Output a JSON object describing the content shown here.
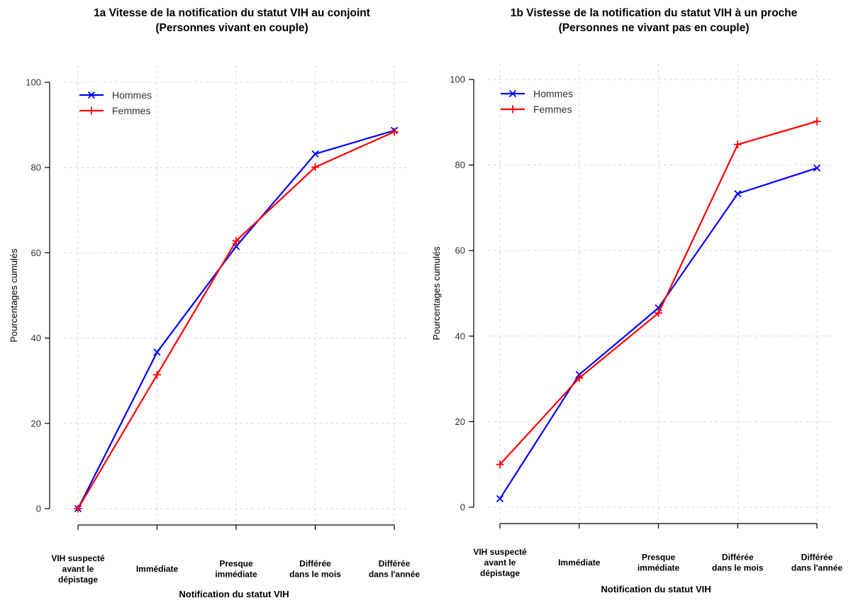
{
  "chart_data": [
    {
      "type": "line",
      "title": "1a Vitesse de la notification du statut VIH au conjoint",
      "subtitle": "(Personnes vivant en couple)",
      "xlabel": "Notification du statut VIH",
      "ylabel": "Pourcentages cumulés",
      "categories": [
        "VIH suspecté|avant le|dépistage",
        "Immédiate",
        "Presque|immédiate",
        "Différée|dans le mois",
        "Différée|dans l'année"
      ],
      "ylim": [
        0,
        100
      ],
      "yticks": [
        "0",
        "20",
        "40",
        "60",
        "80",
        "100"
      ],
      "grid": true,
      "legend_position": "top-left",
      "series": [
        {
          "name": "Hommes",
          "color": "#0000ff",
          "marker": "x",
          "values": [
            0,
            36.7,
            61.5,
            83.2,
            88.7
          ]
        },
        {
          "name": "Femmes",
          "color": "#ff0000",
          "marker": "+",
          "values": [
            0,
            31.4,
            62.8,
            80.1,
            88.4
          ]
        }
      ]
    },
    {
      "type": "line",
      "title": "1b Vistesse de la notification du statut VIH à un proche",
      "subtitle": "(Personnes ne vivant pas en couple)",
      "xlabel": "Notification du statut VIH",
      "ylabel": "Pourcentages cumulés",
      "categories": [
        "VIH suspecté|avant le|dépistage",
        "Immédiate",
        "Presque|immédiate",
        "Différée|dans le mois",
        "Différée|dans l'année"
      ],
      "ylim": [
        0,
        100
      ],
      "yticks": [
        "0",
        "20",
        "40",
        "60",
        "80",
        "100"
      ],
      "grid": true,
      "legend_position": "top-left",
      "series": [
        {
          "name": "Hommes",
          "color": "#0000ff",
          "marker": "x",
          "values": [
            2,
            31.0,
            46.6,
            73.3,
            79.3
          ]
        },
        {
          "name": "Femmes",
          "color": "#ff0000",
          "marker": "+",
          "values": [
            10,
            30.2,
            45.4,
            84.8,
            90.2
          ]
        }
      ]
    }
  ]
}
